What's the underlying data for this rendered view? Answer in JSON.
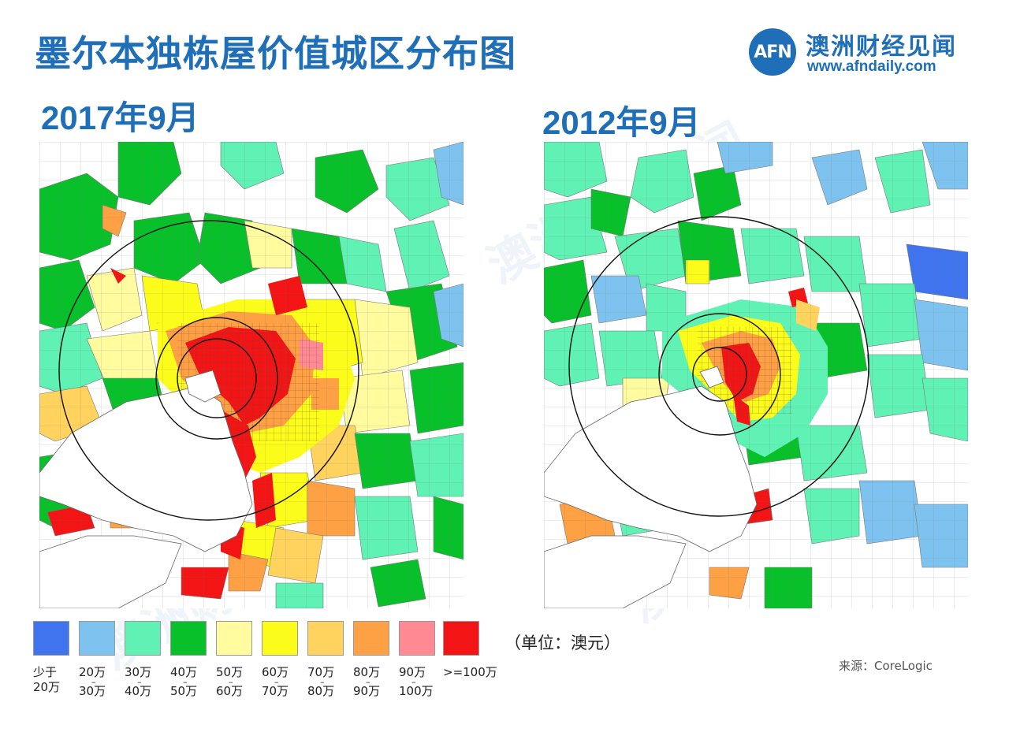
{
  "title": "墨尔本独栋屋价值城区分布图",
  "logo": {
    "mark": "AFN",
    "name": "澳洲财经见闻",
    "url": "www.afndaily.com"
  },
  "maps": [
    {
      "label": "2017年9月",
      "icon": "melbourne-suburb-price-map-2017"
    },
    {
      "label": "2012年9月",
      "icon": "melbourne-suburb-price-map-2012"
    }
  ],
  "legend": [
    {
      "color": "#3f74ee",
      "line1": "少于",
      "line2": "20万",
      "dash": false
    },
    {
      "color": "#7ec3ef",
      "line1": "20万",
      "line2": "30万",
      "dash": true
    },
    {
      "color": "#5ff2b4",
      "line1": "30万",
      "line2": "40万",
      "dash": true
    },
    {
      "color": "#08c02a",
      "line1": "40万",
      "line2": "50万",
      "dash": true
    },
    {
      "color": "#fffb9e",
      "line1": "50万",
      "line2": "60万",
      "dash": true
    },
    {
      "color": "#fcfc1a",
      "line1": "60万",
      "line2": "70万",
      "dash": true
    },
    {
      "color": "#ffd35e",
      "line1": "70万",
      "line2": "80万",
      "dash": true
    },
    {
      "color": "#fea144",
      "line1": "80万",
      "line2": "90万",
      "dash": true
    },
    {
      "color": "#ff8a93",
      "line1": "90万",
      "line2": "100万",
      "dash": true
    },
    {
      "color": "#f31515",
      "line1": ">=100万",
      "line2": "",
      "dash": false
    }
  ],
  "unit": "（单位：澳元）",
  "source": "来源：CoreLogic",
  "watermark_text": "澳洲财经见闻",
  "colors": {
    "brand": "#1f6fb8"
  }
}
